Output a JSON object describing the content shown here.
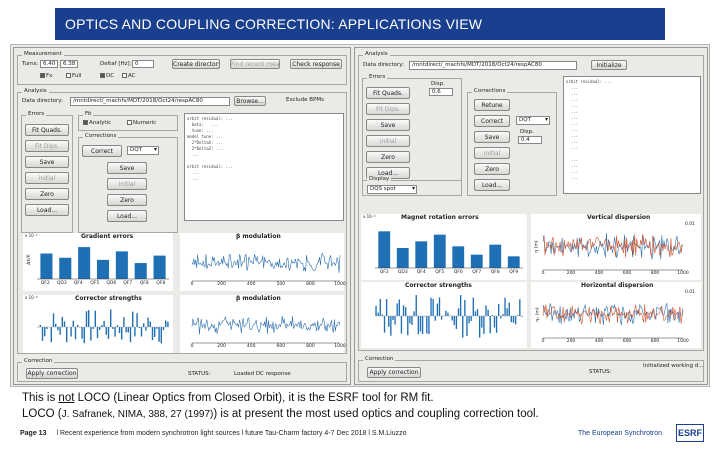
{
  "slide": {
    "title": "OPTICS AND COUPLING CORRECTION: APPLICATIONS VIEW",
    "caption_line1_pre": "This is ",
    "caption_line1_not": "not",
    "caption_line1_post": " LOCO (Linear Optics from Closed Orbit), it is the ESRF tool for RM fit.",
    "caption_line2_a": "LOCO (",
    "caption_line2_ref": "J. Safranek, NIMA, 388, 27 (1997)",
    "caption_line2_b": ") is at present the most used optics and coupling correction tool.",
    "footer_page": "Page 13",
    "footer_text": "l Recent experience from modern synchrotron light sources l future Tau-Charm factory 4-7 Dec 2018 l S.M.Liuzzo",
    "footer_org": "The European Synchrotron",
    "logo_text": "ESRF"
  },
  "left_app": {
    "measurement_label": "Measurement",
    "turns_label": "Turns:",
    "turns_value": "6.40",
    "turns_value2": "6.38",
    "deltaf_label": "Deltaf [Hz]:",
    "deltaf_value": "0",
    "create_dir": "Create directory",
    "find_recent": "Find recent mea...",
    "check_response": "Check response",
    "checks": [
      "Fx",
      "Full",
      "DC",
      "AC"
    ],
    "analysis_label": "Analysis",
    "data_dir_label": "Data directory:",
    "data_dir_value": "/mntdirect/_machfs/MDT/2018/Oct24/respAC80",
    "browse": "Browse...",
    "exclude_bpms": "Exclude BPMs",
    "errors_label": "Errors",
    "fit_quads": "Fit Quads.",
    "fit_dips": "Fit Dips.",
    "save": "Save",
    "initial": "initial",
    "zero": "Zero",
    "load": "Load...",
    "fit_label": "Fit",
    "analytic": "Analytic",
    "numeric": "Numeric",
    "corrections_label": "Corrections",
    "correct": "Correct",
    "correct_sel": "DQT",
    "save2": "Save",
    "initial2": "initial",
    "zero2": "Zero",
    "load2": "Load...",
    "output": "orbit residual: ...\n  beta:   ...\n  tune: ...\nmodel tune: ...\n  2*DeltaX: ...\n  2*DeltaZ: ...\n  ...\n\norbit residual: ...\n  ...\n  ...",
    "correction_label": "Correction",
    "apply_correction": "Apply correction",
    "status_label": "STATUS:",
    "status_value": "Loaded DC response"
  },
  "right_app": {
    "analysis_label": "Analysis",
    "data_dir_label": "Data directory:",
    "data_dir_value": "/mntdirect/_machfs/MDT/2018/Oct24/respAC80",
    "initialize": "Initialize",
    "errors_label": "Errors",
    "disp_label": "Disp.",
    "disp_value": "0.6",
    "fit_quads": "Fit Quads.",
    "fit_dips": "Fit Dips.",
    "save": "Save",
    "initial": "initial",
    "zero": "Zero",
    "load": "Load...",
    "corrections_label": "Corrections",
    "retune": "Retune",
    "correct": "Correct",
    "correct_sel": "DQT",
    "save2": "Save",
    "initial2": "initial",
    "zero2": "Zero",
    "load2": "Load...",
    "disp2_label": "Disp.",
    "disp2_value": "0.4",
    "display_label": "Display",
    "display_sel": "DQS spot",
    "output": "orbit residual: ...\n  ...\n  ...\n  ...\n  ...\n  ...\n  ...\n  ...\n  ...\n  ...\n  ...\n  ...\n\n  ...\n  ...\n  ...\n  ...",
    "correction_label": "Correction",
    "apply_correction": "Apply correction",
    "status_label": "STATUS:",
    "status_value": "Initialized working d..."
  },
  "plots": {
    "gradient_title": "Gradient errors",
    "gradient_exp": "x 10⁻³",
    "gradient_ylabel": "ΔK/K",
    "gradient_cats": [
      "QF2",
      "QD3",
      "QF4",
      "QF5",
      "QD6",
      "QF7",
      "QF8"
    ],
    "gradient_cats_shown": [
      "QF2",
      "QD3",
      "QF4",
      "QF5",
      "QD6",
      "QF7",
      "QF8",
      "QF8"
    ],
    "corrector_title": "Corrector strengths",
    "beta_title": "β  modulation",
    "beta_ticks": [
      "0",
      "200",
      "400",
      "500",
      "800",
      "1000"
    ],
    "beta2_title": "β  modulation",
    "beta2_ticks": [
      "0",
      "200",
      "400",
      "600",
      "800",
      "1000"
    ],
    "magrot_title": "Magnet rotation errors",
    "magrot_exp": "x 10⁻⁴",
    "magrot_cats": [
      "QF2",
      "QD3",
      "QF4",
      "QF5",
      "QF6",
      "QF7",
      "QF8",
      "QF9"
    ],
    "magrot_cats_shown": [
      "QF2",
      "QD3",
      "QF4",
      "QF5",
      "QF6",
      "QF7",
      "QF8",
      "QF9"
    ],
    "vdisp_title": "Vertical dispersion",
    "vdisp_ylabel": "η (m)",
    "vdisp_ytick": "0.01",
    "vdisp_ticks": [
      "0",
      "200",
      "400",
      "600",
      "800",
      "1000"
    ],
    "corrector2_title": "Corrector strengths",
    "hdisp_title": "Horizontal dispersion",
    "hdisp_ylabel": "ηₓ (m)",
    "hdisp_ytick": "0.01",
    "hdisp_ticks": [
      "0",
      "200",
      "400",
      "600",
      "800",
      "1000"
    ],
    "y_exp": "x 10⁻³"
  },
  "colors": {
    "brand": "#1a3f8e",
    "bar": "#1f6fb4",
    "line_blue": "#2a6fb0",
    "line_red": "#d2522a"
  },
  "chart_data": [
    {
      "type": "bar",
      "title": "Gradient errors",
      "categories": [
        "QF2",
        "QD3",
        "QF4",
        "QF5",
        "QD6",
        "QF7",
        "QF8"
      ],
      "values": [
        2.4,
        2.0,
        3.0,
        1.8,
        2.6,
        1.5,
        2.2
      ]
    },
    {
      "type": "bar",
      "title": "Magnet rotation errors",
      "categories": [
        "QF2",
        "QD3",
        "QF4",
        "QF5",
        "QF6",
        "QF7",
        "QF8",
        "QF9"
      ],
      "values": [
        2.2,
        1.2,
        1.6,
        2.0,
        1.3,
        0.8,
        1.4,
        0.7
      ]
    },
    {
      "type": "line",
      "title": "Vertical dispersion",
      "x_range": [
        0,
        1000
      ],
      "y_range": [
        -0.01,
        0.01
      ]
    },
    {
      "type": "line",
      "title": "Horizontal dispersion",
      "x_range": [
        0,
        1000
      ],
      "y_range": [
        -0.01,
        0.01
      ]
    }
  ]
}
